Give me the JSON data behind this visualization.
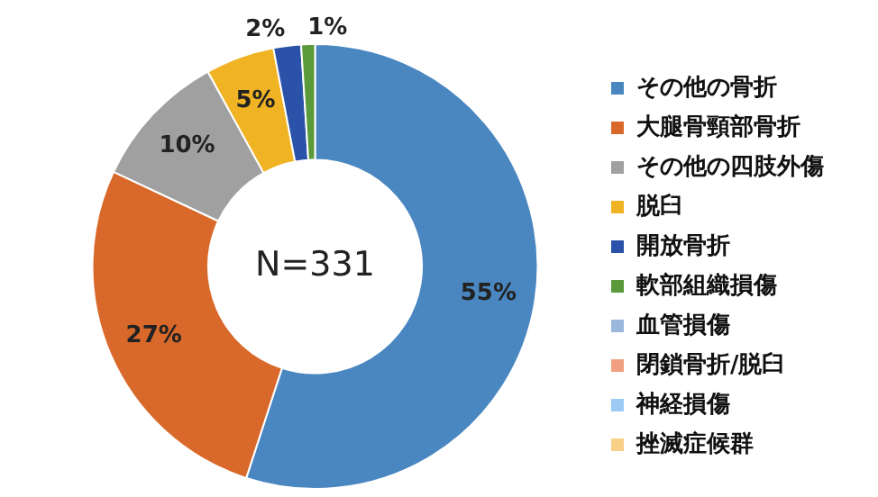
{
  "chart_data": {
    "type": "donut",
    "categories": [
      "その他の骨折",
      "大腿骨頸部骨折",
      "その他の四肢外傷",
      "脱臼",
      "開放骨折",
      "軟部組織損傷",
      "血管損傷",
      "閉鎖骨折/脱臼",
      "神経損傷",
      "挫滅症候群"
    ],
    "values": [
      55,
      27,
      10,
      5,
      2,
      1,
      0,
      0,
      0,
      0
    ],
    "value_labels": [
      "55%",
      "27%",
      "10%",
      "5%",
      "2%",
      "1%",
      null,
      null,
      null,
      null
    ],
    "colors": [
      "#4a86c0",
      "#d9692a",
      "#a0a0a0",
      "#f0b323",
      "#2a52a8",
      "#5a9a3a",
      "#9ab8dc",
      "#f0a080",
      "#9ccaf5",
      "#f8d088"
    ],
    "annotations": [
      "N=331"
    ],
    "legend": "right"
  }
}
